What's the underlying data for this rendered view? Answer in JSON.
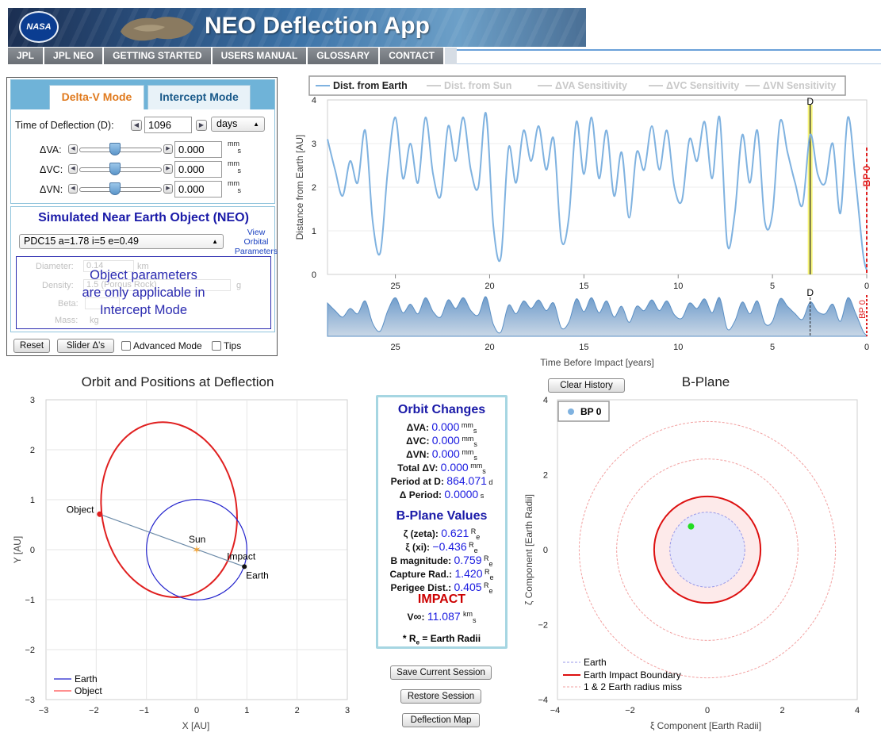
{
  "header": {
    "logo_text": "NASA",
    "title": "NEO Deflection App"
  },
  "nav": [
    "JPL",
    "JPL NEO",
    "GETTING STARTED",
    "USERS MANUAL",
    "GLOSSARY",
    "CONTACT"
  ],
  "tabs": {
    "delta_v": "Delta-V Mode",
    "intercept": "Intercept Mode"
  },
  "deflection": {
    "label": "Time of Deflection (D):",
    "value": "1096",
    "unit_select": "days"
  },
  "sliders": [
    {
      "label": "ΔVA:",
      "value": "0.000",
      "unit_top": "mm",
      "unit_sub": "s",
      "position": 0.5
    },
    {
      "label": "ΔVC:",
      "value": "0.000",
      "unit_top": "mm",
      "unit_sub": "s",
      "position": 0.5
    },
    {
      "label": "ΔVN:",
      "value": "0.000",
      "unit_top": "mm",
      "unit_sub": "s",
      "position": 0.5
    }
  ],
  "neo": {
    "title": "Simulated Near Earth Object (NEO)",
    "selected": "PDC15 a=1.78 i=5 e=0.49",
    "view_link": [
      "View",
      "Orbital",
      "Parameters"
    ],
    "params_note": [
      "Object parameters",
      "are only applicable in",
      "Intercept Mode"
    ],
    "ghost_fields": [
      {
        "label": "Diameter:",
        "value": "0.14",
        "unit": "km"
      },
      {
        "label": "Density:",
        "value": "1.5 (Porous Rock)",
        "unit": "g"
      },
      {
        "label": "Beta:",
        "value": "",
        "unit": ""
      },
      {
        "label": "Mass:",
        "value": "",
        "unit": "kg"
      }
    ]
  },
  "controls": {
    "reset": "Reset",
    "slider_dv": "Slider Δ's",
    "advanced": "Advanced Mode",
    "tips": "Tips"
  },
  "timeline": {
    "legend": [
      "Dist. from Earth",
      "Dist. from Sun",
      "ΔVA Sensitivity",
      "ΔVC Sensitivity",
      "ΔVN Sensitivity"
    ],
    "legend_active": [
      true,
      false,
      false,
      false,
      false
    ],
    "ylabel": "Distance from Earth [AU]",
    "xlabel": "Time Before Impact [years]",
    "marker_d": "D",
    "marker_bp": "BP 0",
    "yticks": [
      "0",
      "1",
      "2",
      "3",
      "4"
    ],
    "xticks": [
      "25",
      "20",
      "15",
      "10",
      "5",
      "0"
    ]
  },
  "orbit_plot": {
    "title": "Orbit and Positions at Deflection",
    "xlabel": "X [AU]",
    "ylabel": "Y [AU]",
    "ticks": [
      "−3",
      "−2",
      "−1",
      "0",
      "1",
      "2",
      "3"
    ],
    "labels": {
      "object": "Object",
      "sun": "Sun",
      "impact": "Impact",
      "earth": "Earth"
    },
    "legend": [
      "Earth",
      "Object"
    ]
  },
  "orbit_changes": {
    "title": "Orbit Changes",
    "rows": [
      {
        "k": "ΔVA:",
        "v": "0.000",
        "u": "mm",
        "s": "s"
      },
      {
        "k": "ΔVC:",
        "v": "0.000",
        "u": "mm",
        "s": "s"
      },
      {
        "k": "ΔVN:",
        "v": "0.000",
        "u": "mm",
        "s": "s"
      },
      {
        "k": "Total ΔV:",
        "v": "0.000",
        "u": "mm",
        "s": "s"
      },
      {
        "k": "Period at D:",
        "v": "864.071",
        "u": "d",
        "s": ""
      },
      {
        "k": "Δ Period:",
        "v": "0.0000",
        "u": "s",
        "s": ""
      }
    ],
    "bplane_title": "B-Plane Values",
    "bplane_rows": [
      {
        "k": "ζ (zeta):",
        "v": "0.621",
        "u": "R",
        "s": "e"
      },
      {
        "k": "ξ (xi):",
        "v": "−0.436",
        "u": "R",
        "s": "e"
      },
      {
        "k": "B magnitude:",
        "v": "0.759",
        "u": "R",
        "s": "e"
      },
      {
        "k": "Capture Rad.:",
        "v": "1.420",
        "u": "R",
        "s": "e"
      },
      {
        "k": "Perigee Dist.:",
        "v": "0.405",
        "u": "R",
        "s": "e"
      }
    ],
    "impact": "IMPACT",
    "vinf_label": "V",
    "vinf_value": "11.087",
    "vinf_unit": "km",
    "vinf_unit_sub": "s",
    "footnote": "* R",
    "footnote_sub": "e",
    "footnote_rest": " = Earth Radii"
  },
  "session_buttons": [
    "Save Current Session",
    "Restore Session",
    "Deflection Map"
  ],
  "bplane": {
    "title": "B-Plane",
    "clear_history": "Clear History",
    "legend_point": "BP 0",
    "xlabel": "ξ Component [Earth Radii]",
    "ylabel": "ζ Component [Earth Radii]",
    "ticks": [
      "−4",
      "−2",
      "0",
      "2",
      "4"
    ],
    "legend": [
      "Earth",
      "Earth Impact Boundary",
      "1 & 2 Earth radius miss"
    ],
    "point": {
      "xi": -0.436,
      "zeta": 0.621
    },
    "capture_radius": 1.42
  },
  "chart_data": [
    {
      "type": "line",
      "ylabel": "Distance from Earth [AU]",
      "xlabel": "Time Before Impact [years]",
      "ylim": [
        0,
        4
      ],
      "xlim": [
        28.6,
        0
      ],
      "series": [
        {
          "name": "Dist. from Earth",
          "x": [
            28.6,
            28.2,
            27.8,
            27.4,
            27.0,
            26.6,
            26.2,
            25.8,
            25.4,
            25.0,
            24.6,
            24.2,
            23.8,
            23.4,
            23.0,
            22.6,
            22.2,
            21.8,
            21.4,
            21.0,
            20.6,
            20.2,
            19.8,
            19.4,
            19.0,
            18.6,
            18.2,
            17.8,
            17.4,
            17.0,
            16.6,
            16.2,
            15.8,
            15.4,
            15.0,
            14.6,
            14.2,
            13.8,
            13.4,
            13.0,
            12.6,
            12.2,
            11.8,
            11.4,
            11.0,
            10.6,
            10.2,
            9.8,
            9.4,
            9.0,
            8.6,
            8.2,
            7.8,
            7.4,
            7.0,
            6.6,
            6.2,
            5.8,
            5.4,
            5.0,
            4.6,
            4.2,
            3.8,
            3.4,
            3.0,
            2.6,
            2.2,
            1.8,
            1.4,
            1.0,
            0.6,
            0.2,
            0.0
          ],
          "y": [
            3.1,
            2.4,
            1.8,
            2.6,
            2.1,
            3.3,
            1.2,
            0.5,
            2.4,
            3.6,
            2.2,
            3.0,
            2.1,
            3.6,
            2.3,
            1.8,
            3.4,
            2.6,
            3.6,
            2.4,
            2.0,
            3.7,
            1.1,
            0.4,
            2.9,
            2.1,
            3.3,
            2.6,
            3.4,
            2.4,
            3.1,
            0.8,
            1.3,
            3.5,
            2.3,
            3.6,
            2.2,
            3.3,
            1.8,
            2.8,
            1.3,
            2.8,
            2.4,
            3.4,
            2.4,
            3.3,
            2.0,
            1.7,
            3.1,
            2.6,
            3.5,
            2.2,
            3.6,
            0.7,
            1.4,
            3.2,
            2.1,
            3.3,
            1.2,
            1.4,
            3.5,
            2.8,
            2.1,
            1.6,
            3.2,
            2.3,
            2.1,
            3.0,
            1.4,
            3.6,
            2.2,
            0.5,
            0.1
          ]
        }
      ]
    },
    {
      "type": "scatter",
      "title": "Orbit and Positions at Deflection",
      "xlabel": "X [AU]",
      "ylabel": "Y [AU]",
      "xlim": [
        -3,
        3
      ],
      "ylim": [
        -3,
        3
      ],
      "series": [
        {
          "name": "Earth",
          "radius_au": 1.0
        },
        {
          "name": "Object",
          "a": 1.78,
          "e": 0.49
        }
      ],
      "points": [
        {
          "label": "Object",
          "x": -1.93,
          "y": 0.71
        },
        {
          "label": "Sun",
          "x": 0.0,
          "y": 0.0
        },
        {
          "label": "Earth",
          "x": 0.95,
          "y": -0.34
        }
      ]
    },
    {
      "type": "scatter",
      "title": "B-Plane",
      "xlabel": "ξ Component [Earth Radii]",
      "ylabel": "ζ Component [Earth Radii]",
      "xlim": [
        -4,
        4
      ],
      "ylim": [
        -4,
        4
      ],
      "series": [
        {
          "name": "BP 0",
          "x": [
            -0.436
          ],
          "y": [
            0.621
          ]
        }
      ]
    }
  ]
}
